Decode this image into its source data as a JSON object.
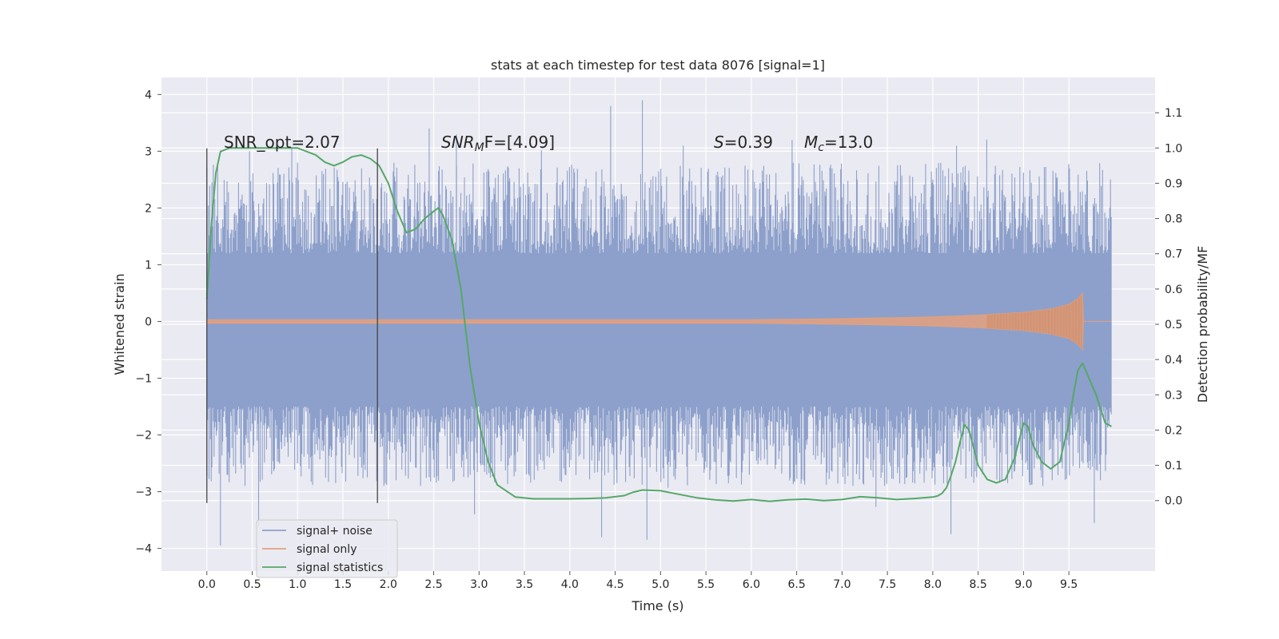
{
  "chart_data": {
    "type": "line",
    "title": "stats at each timestep for test data 8076 [signal=1]",
    "xlabel": "Time (s)",
    "ylabel_left": "Whitened strain",
    "ylabel_right": "Detection probability/MF",
    "xlim": [
      -0.5,
      10.45
    ],
    "ylim_left": [
      -4.4,
      4.3
    ],
    "ylim_right": [
      -0.2,
      1.2
    ],
    "x_ticks": [
      "0.0",
      "0.5",
      "1.0",
      "1.5",
      "2.0",
      "2.5",
      "3.0",
      "3.5",
      "4.0",
      "4.5",
      "5.0",
      "5.5",
      "6.0",
      "6.5",
      "7.0",
      "7.5",
      "8.0",
      "8.5",
      "9.0",
      "9.5"
    ],
    "y_left_ticks": [
      "4",
      "3",
      "2",
      "1",
      "0",
      "−1",
      "−2",
      "−3",
      "−4"
    ],
    "y_right_ticks": [
      "1.1",
      "1.0",
      "0.9",
      "0.8",
      "0.7",
      "0.6",
      "0.5",
      "0.4",
      "0.3",
      "0.2",
      "0.1",
      "0.0"
    ],
    "grid": true,
    "legend_placement": "lower-left",
    "annotations": {
      "snr_opt": "SNR_opt=2.07",
      "snr_mf_name": "SNR",
      "snr_mf_sub": "M",
      "snr_mf_tail": "F=[4.09]",
      "s_name": "S",
      "s_value": "=0.39",
      "mc_name": "M",
      "mc_sub": "c",
      "mc_value": "=13.0"
    },
    "vertical_markers": [
      0.0,
      1.88
    ],
    "series": [
      {
        "name": "signal+ noise",
        "axis": "left",
        "color": "#8da0cb",
        "x_range": [
          0.0,
          9.97
        ],
        "band_low": -1.5,
        "band_high": 1.2,
        "typical_extremes": [
          -2.5,
          2.5
        ],
        "peak_max": [
          {
            "x": 0.47,
            "y": 3.0
          },
          {
            "x": 2.45,
            "y": 3.4
          },
          {
            "x": 2.75,
            "y": 3.3
          },
          {
            "x": 4.45,
            "y": 3.8
          },
          {
            "x": 4.8,
            "y": 3.9
          },
          {
            "x": 5.25,
            "y": 3.1
          },
          {
            "x": 6.45,
            "y": 3.2
          }
        ],
        "peak_min": [
          {
            "x": 0.15,
            "y": -3.95
          },
          {
            "x": 0.57,
            "y": -3.6
          },
          {
            "x": 2.95,
            "y": -3.4
          },
          {
            "x": 4.35,
            "y": -3.8
          },
          {
            "x": 4.85,
            "y": -3.85
          },
          {
            "x": 8.2,
            "y": -3.75
          },
          {
            "x": 9.78,
            "y": -3.55
          }
        ]
      },
      {
        "name": "signal only",
        "axis": "left",
        "color": "#e5a07c",
        "x": [
          0.0,
          6.0,
          7.0,
          8.0,
          8.5,
          9.0,
          9.3,
          9.5,
          9.6,
          9.65,
          9.66,
          9.97
        ],
        "envelope": [
          0.03,
          0.03,
          0.05,
          0.08,
          0.11,
          0.16,
          0.22,
          0.3,
          0.4,
          0.5,
          0.0,
          0.0
        ]
      },
      {
        "name": "signal statistics",
        "axis": "right",
        "color": "#55a868",
        "x": [
          0.0,
          0.05,
          0.1,
          0.15,
          0.25,
          0.4,
          0.6,
          0.8,
          1.0,
          1.1,
          1.2,
          1.3,
          1.4,
          1.5,
          1.6,
          1.7,
          1.8,
          1.9,
          2.0,
          2.1,
          2.2,
          2.3,
          2.4,
          2.5,
          2.55,
          2.6,
          2.7,
          2.8,
          2.9,
          3.0,
          3.1,
          3.2,
          3.4,
          3.6,
          3.8,
          4.0,
          4.2,
          4.4,
          4.6,
          4.7,
          4.8,
          5.0,
          5.2,
          5.4,
          5.6,
          5.8,
          6.0,
          6.2,
          6.4,
          6.6,
          6.8,
          7.0,
          7.2,
          7.4,
          7.6,
          7.8,
          8.0,
          8.05,
          8.1,
          8.15,
          8.2,
          8.25,
          8.3,
          8.35,
          8.4,
          8.5,
          8.6,
          8.7,
          8.8,
          8.9,
          8.95,
          9.0,
          9.05,
          9.1,
          9.2,
          9.3,
          9.4,
          9.5,
          9.55,
          9.6,
          9.65,
          9.7,
          9.8,
          9.9,
          9.97
        ],
        "values": [
          0.57,
          0.78,
          0.93,
          0.99,
          1.0,
          1.0,
          1.0,
          1.0,
          1.0,
          0.99,
          0.98,
          0.96,
          0.95,
          0.96,
          0.975,
          0.98,
          0.97,
          0.95,
          0.9,
          0.82,
          0.76,
          0.77,
          0.8,
          0.82,
          0.83,
          0.81,
          0.74,
          0.6,
          0.38,
          0.22,
          0.11,
          0.045,
          0.01,
          0.005,
          0.005,
          0.005,
          0.006,
          0.008,
          0.014,
          0.024,
          0.03,
          0.028,
          0.018,
          0.008,
          0.002,
          -0.001,
          0.003,
          -0.002,
          0.002,
          0.004,
          0.0,
          0.003,
          0.011,
          0.008,
          0.003,
          0.006,
          0.01,
          0.013,
          0.02,
          0.036,
          0.07,
          0.11,
          0.165,
          0.215,
          0.2,
          0.1,
          0.06,
          0.05,
          0.06,
          0.12,
          0.17,
          0.22,
          0.21,
          0.16,
          0.11,
          0.09,
          0.11,
          0.22,
          0.3,
          0.37,
          0.39,
          0.36,
          0.3,
          0.22,
          0.21
        ]
      }
    ]
  }
}
